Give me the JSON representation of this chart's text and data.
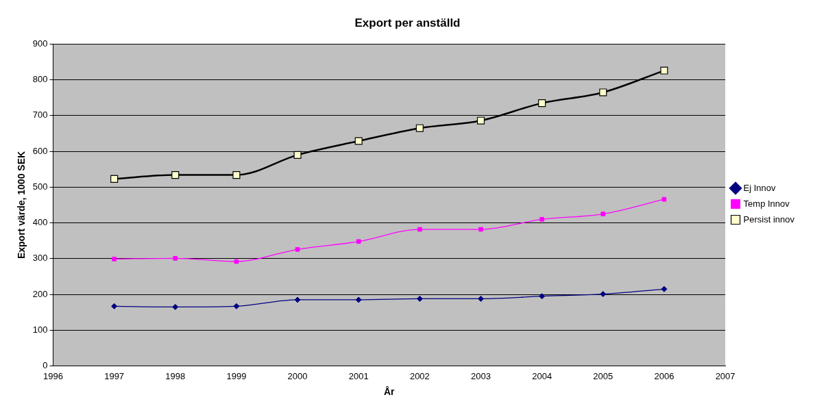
{
  "chart_data": {
    "type": "line",
    "title": "Export per anställd",
    "xlabel": "År",
    "ylabel": "Export värde, 1000 SEK",
    "x": [
      1997,
      1998,
      1999,
      2000,
      2001,
      2002,
      2003,
      2004,
      2005,
      2006
    ],
    "xlim": [
      1996,
      2007
    ],
    "xticks": [
      1996,
      1997,
      1998,
      1999,
      2000,
      2001,
      2002,
      2003,
      2004,
      2005,
      2006,
      2007
    ],
    "ylim": [
      0,
      900
    ],
    "yticks": [
      0,
      100,
      200,
      300,
      400,
      500,
      600,
      700,
      800,
      900
    ],
    "grid": "y",
    "legend": "right",
    "line_style": "solid",
    "series": [
      {
        "name": "Ej Innov",
        "color": "#000080",
        "marker": "diamond",
        "values": [
          167,
          165,
          167,
          185,
          185,
          188,
          188,
          195,
          201,
          215
        ]
      },
      {
        "name": "Temp Innov",
        "color": "#ff00ff",
        "marker": "square",
        "values": [
          299,
          301,
          292,
          326,
          348,
          382,
          382,
          410,
          425,
          466
        ]
      },
      {
        "name": "Persist innov",
        "color": "#000000",
        "marker": "square",
        "values": [
          523,
          534,
          534,
          590,
          629,
          665,
          686,
          735,
          765,
          826
        ]
      }
    ]
  }
}
